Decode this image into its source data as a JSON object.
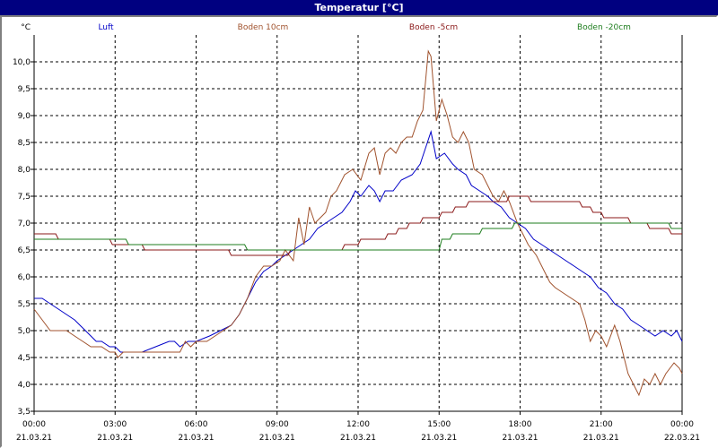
{
  "window": {
    "title": "Temperatur [°C]"
  },
  "chart_data": {
    "type": "line",
    "ylabel": "°C",
    "ylim": [
      3.5,
      10.5
    ],
    "xlim": [
      0,
      24
    ],
    "grid": true,
    "legend_position": "top",
    "yticks": [
      "3,5",
      "4,0",
      "4,5",
      "5,0",
      "5,5",
      "6,0",
      "6,5",
      "7,0",
      "7,5",
      "8,0",
      "8,5",
      "9,0",
      "9,5",
      "10,0"
    ],
    "xticks": [
      {
        "time": "00:00",
        "date": "21.03.21"
      },
      {
        "time": "03:00",
        "date": "21.03.21"
      },
      {
        "time": "06:00",
        "date": "21.03.21"
      },
      {
        "time": "09:00",
        "date": "21.03.21"
      },
      {
        "time": "12:00",
        "date": "21.03.21"
      },
      {
        "time": "15:00",
        "date": "21.03.21"
      },
      {
        "time": "18:00",
        "date": "21.03.21"
      },
      {
        "time": "21:00",
        "date": "21.03.21"
      },
      {
        "time": "00:00",
        "date": "22.03.21"
      }
    ],
    "series": [
      {
        "name": "Luft",
        "color": "#0000c8",
        "points": [
          [
            0,
            5.6
          ],
          [
            0.3,
            5.6
          ],
          [
            0.6,
            5.5
          ],
          [
            0.9,
            5.4
          ],
          [
            1.2,
            5.3
          ],
          [
            1.5,
            5.2
          ],
          [
            1.7,
            5.1
          ],
          [
            1.9,
            5.0
          ],
          [
            2.1,
            4.9
          ],
          [
            2.3,
            4.8
          ],
          [
            2.5,
            4.8
          ],
          [
            2.8,
            4.7
          ],
          [
            3.0,
            4.7
          ],
          [
            3.2,
            4.6
          ],
          [
            3.5,
            4.6
          ],
          [
            4.0,
            4.6
          ],
          [
            4.5,
            4.7
          ],
          [
            5.0,
            4.8
          ],
          [
            5.2,
            4.8
          ],
          [
            5.4,
            4.7
          ],
          [
            5.7,
            4.8
          ],
          [
            6.0,
            4.8
          ],
          [
            6.5,
            4.9
          ],
          [
            6.9,
            5.0
          ],
          [
            7.3,
            5.1
          ],
          [
            7.6,
            5.3
          ],
          [
            7.9,
            5.6
          ],
          [
            8.2,
            5.9
          ],
          [
            8.5,
            6.1
          ],
          [
            8.8,
            6.2
          ],
          [
            9.0,
            6.3
          ],
          [
            9.3,
            6.4
          ],
          [
            9.6,
            6.5
          ],
          [
            9.9,
            6.6
          ],
          [
            10.2,
            6.7
          ],
          [
            10.5,
            6.9
          ],
          [
            10.8,
            7.0
          ],
          [
            11.1,
            7.1
          ],
          [
            11.4,
            7.2
          ],
          [
            11.7,
            7.4
          ],
          [
            11.9,
            7.6
          ],
          [
            12.1,
            7.5
          ],
          [
            12.4,
            7.7
          ],
          [
            12.6,
            7.6
          ],
          [
            12.8,
            7.4
          ],
          [
            13.0,
            7.6
          ],
          [
            13.3,
            7.6
          ],
          [
            13.6,
            7.8
          ],
          [
            14.0,
            7.9
          ],
          [
            14.3,
            8.1
          ],
          [
            14.5,
            8.4
          ],
          [
            14.7,
            8.7
          ],
          [
            14.9,
            8.2
          ],
          [
            15.2,
            8.3
          ],
          [
            15.5,
            8.1
          ],
          [
            15.7,
            8.0
          ],
          [
            16.0,
            7.9
          ],
          [
            16.2,
            7.7
          ],
          [
            16.5,
            7.6
          ],
          [
            16.8,
            7.5
          ],
          [
            17.0,
            7.4
          ],
          [
            17.3,
            7.3
          ],
          [
            17.6,
            7.1
          ],
          [
            17.9,
            7.0
          ],
          [
            18.2,
            6.9
          ],
          [
            18.5,
            6.7
          ],
          [
            18.8,
            6.6
          ],
          [
            19.1,
            6.5
          ],
          [
            19.4,
            6.4
          ],
          [
            19.7,
            6.3
          ],
          [
            20.0,
            6.2
          ],
          [
            20.3,
            6.1
          ],
          [
            20.6,
            6.0
          ],
          [
            20.9,
            5.8
          ],
          [
            21.2,
            5.7
          ],
          [
            21.5,
            5.5
          ],
          [
            21.8,
            5.4
          ],
          [
            22.1,
            5.2
          ],
          [
            22.4,
            5.1
          ],
          [
            22.7,
            5.0
          ],
          [
            23.0,
            4.9
          ],
          [
            23.3,
            5.0
          ],
          [
            23.6,
            4.9
          ],
          [
            23.8,
            5.0
          ],
          [
            24.0,
            4.8
          ]
        ]
      },
      {
        "name": "Boden 10cm",
        "color": "#a0522d",
        "points": [
          [
            0,
            5.4
          ],
          [
            0.3,
            5.2
          ],
          [
            0.6,
            5.0
          ],
          [
            0.9,
            5.0
          ],
          [
            1.2,
            5.0
          ],
          [
            1.5,
            4.9
          ],
          [
            1.8,
            4.8
          ],
          [
            2.1,
            4.7
          ],
          [
            2.5,
            4.7
          ],
          [
            2.8,
            4.6
          ],
          [
            3.0,
            4.6
          ],
          [
            3.1,
            4.5
          ],
          [
            3.3,
            4.6
          ],
          [
            3.6,
            4.6
          ],
          [
            4.0,
            4.6
          ],
          [
            4.5,
            4.6
          ],
          [
            5.0,
            4.6
          ],
          [
            5.4,
            4.6
          ],
          [
            5.6,
            4.8
          ],
          [
            5.8,
            4.7
          ],
          [
            6.0,
            4.8
          ],
          [
            6.4,
            4.8
          ],
          [
            6.7,
            4.9
          ],
          [
            7.0,
            5.0
          ],
          [
            7.3,
            5.1
          ],
          [
            7.6,
            5.3
          ],
          [
            7.9,
            5.6
          ],
          [
            8.2,
            6.0
          ],
          [
            8.5,
            6.2
          ],
          [
            8.8,
            6.2
          ],
          [
            9.1,
            6.3
          ],
          [
            9.3,
            6.5
          ],
          [
            9.6,
            6.3
          ],
          [
            9.8,
            7.1
          ],
          [
            10.0,
            6.6
          ],
          [
            10.2,
            7.3
          ],
          [
            10.4,
            7.0
          ],
          [
            10.6,
            7.1
          ],
          [
            10.8,
            7.2
          ],
          [
            11.0,
            7.5
          ],
          [
            11.2,
            7.6
          ],
          [
            11.5,
            7.9
          ],
          [
            11.8,
            8.0
          ],
          [
            12.1,
            7.8
          ],
          [
            12.4,
            8.3
          ],
          [
            12.6,
            8.4
          ],
          [
            12.8,
            7.9
          ],
          [
            13.0,
            8.3
          ],
          [
            13.2,
            8.4
          ],
          [
            13.4,
            8.3
          ],
          [
            13.6,
            8.5
          ],
          [
            13.8,
            8.6
          ],
          [
            14.0,
            8.6
          ],
          [
            14.2,
            8.9
          ],
          [
            14.4,
            9.1
          ],
          [
            14.6,
            10.2
          ],
          [
            14.7,
            10.1
          ],
          [
            14.9,
            8.9
          ],
          [
            15.1,
            9.3
          ],
          [
            15.3,
            9.0
          ],
          [
            15.5,
            8.6
          ],
          [
            15.7,
            8.5
          ],
          [
            15.9,
            8.7
          ],
          [
            16.1,
            8.5
          ],
          [
            16.3,
            8.0
          ],
          [
            16.6,
            7.9
          ],
          [
            16.8,
            7.7
          ],
          [
            17.0,
            7.5
          ],
          [
            17.2,
            7.4
          ],
          [
            17.4,
            7.6
          ],
          [
            17.6,
            7.4
          ],
          [
            17.9,
            7.0
          ],
          [
            18.1,
            6.8
          ],
          [
            18.3,
            6.6
          ],
          [
            18.6,
            6.4
          ],
          [
            18.9,
            6.1
          ],
          [
            19.1,
            5.9
          ],
          [
            19.3,
            5.8
          ],
          [
            19.6,
            5.7
          ],
          [
            19.9,
            5.6
          ],
          [
            20.2,
            5.5
          ],
          [
            20.4,
            5.2
          ],
          [
            20.6,
            4.8
          ],
          [
            20.8,
            5.0
          ],
          [
            21.0,
            4.9
          ],
          [
            21.2,
            4.7
          ],
          [
            21.5,
            5.1
          ],
          [
            21.7,
            4.8
          ],
          [
            22.0,
            4.2
          ],
          [
            22.2,
            4.0
          ],
          [
            22.4,
            3.8
          ],
          [
            22.6,
            4.1
          ],
          [
            22.8,
            4.0
          ],
          [
            23.0,
            4.2
          ],
          [
            23.2,
            4.0
          ],
          [
            23.4,
            4.2
          ],
          [
            23.7,
            4.4
          ],
          [
            23.9,
            4.3
          ],
          [
            24.0,
            4.2
          ]
        ]
      },
      {
        "name": "Boden -5cm",
        "color": "#8b1a1a",
        "points": [
          [
            0,
            6.8
          ],
          [
            0.8,
            6.8
          ],
          [
            0.9,
            6.7
          ],
          [
            2.8,
            6.7
          ],
          [
            2.9,
            6.6
          ],
          [
            4.0,
            6.6
          ],
          [
            4.1,
            6.5
          ],
          [
            7.2,
            6.5
          ],
          [
            7.3,
            6.4
          ],
          [
            9.4,
            6.4
          ],
          [
            9.5,
            6.5
          ],
          [
            11.4,
            6.5
          ],
          [
            11.5,
            6.6
          ],
          [
            12.0,
            6.6
          ],
          [
            12.1,
            6.7
          ],
          [
            13.0,
            6.7
          ],
          [
            13.1,
            6.8
          ],
          [
            13.4,
            6.8
          ],
          [
            13.5,
            6.9
          ],
          [
            13.8,
            6.9
          ],
          [
            13.9,
            7.0
          ],
          [
            14.3,
            7.0
          ],
          [
            14.4,
            7.1
          ],
          [
            15.0,
            7.1
          ],
          [
            15.1,
            7.2
          ],
          [
            15.5,
            7.2
          ],
          [
            15.6,
            7.3
          ],
          [
            16.0,
            7.3
          ],
          [
            16.1,
            7.4
          ],
          [
            17.5,
            7.4
          ],
          [
            17.6,
            7.5
          ],
          [
            18.3,
            7.5
          ],
          [
            18.4,
            7.4
          ],
          [
            20.2,
            7.4
          ],
          [
            20.3,
            7.3
          ],
          [
            20.6,
            7.3
          ],
          [
            20.7,
            7.2
          ],
          [
            21.0,
            7.2
          ],
          [
            21.1,
            7.1
          ],
          [
            22.0,
            7.1
          ],
          [
            22.1,
            7.0
          ],
          [
            22.7,
            7.0
          ],
          [
            22.8,
            6.9
          ],
          [
            23.5,
            6.9
          ],
          [
            23.6,
            6.8
          ],
          [
            24.0,
            6.8
          ]
        ]
      },
      {
        "name": "Boden -20cm",
        "color": "#1e7d1e",
        "points": [
          [
            0,
            6.7
          ],
          [
            3.4,
            6.7
          ],
          [
            3.5,
            6.6
          ],
          [
            7.8,
            6.6
          ],
          [
            7.9,
            6.5
          ],
          [
            15.0,
            6.5
          ],
          [
            15.1,
            6.7
          ],
          [
            15.4,
            6.7
          ],
          [
            15.5,
            6.8
          ],
          [
            16.5,
            6.8
          ],
          [
            16.6,
            6.9
          ],
          [
            17.7,
            6.9
          ],
          [
            17.8,
            7.0
          ],
          [
            23.5,
            7.0
          ],
          [
            23.6,
            6.9
          ],
          [
            24.0,
            6.9
          ]
        ]
      }
    ]
  }
}
